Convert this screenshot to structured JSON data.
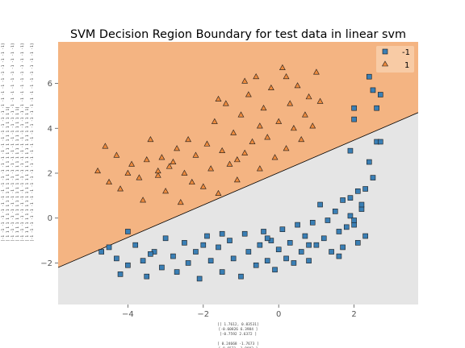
{
  "chart_data": {
    "type": "scatter",
    "title": "SVM Decision Region Boundary for test data in linear svm",
    "xlabel": "",
    "ylabel": "",
    "xlim": [
      -5.85,
      3.7
    ],
    "ylim": [
      -3.85,
      7.85
    ],
    "xticks": [
      -4,
      -2,
      0,
      2
    ],
    "yticks": [
      -2,
      0,
      2,
      4,
      6
    ],
    "grid": false,
    "legend_position": "top-right",
    "boundary": {
      "x": [
        -5.85,
        3.7
      ],
      "y": [
        -2.2,
        4.7
      ]
    },
    "region_colors": {
      "class_1": "#f4b482",
      "class_neg1": "#e5e5e5"
    },
    "series": [
      {
        "name": "-1",
        "marker": "square",
        "color": "#3a7fb5",
        "points": [
          [
            -4.0,
            -0.6
          ],
          [
            -4.7,
            -1.5
          ],
          [
            -4.5,
            -1.3
          ],
          [
            -4.3,
            -1.8
          ],
          [
            -4.2,
            -2.5
          ],
          [
            -4.0,
            -2.1
          ],
          [
            -3.8,
            -1.2
          ],
          [
            -3.6,
            -1.9
          ],
          [
            -3.5,
            -2.6
          ],
          [
            -3.3,
            -1.5
          ],
          [
            -3.1,
            -2.2
          ],
          [
            -3.0,
            -0.9
          ],
          [
            -2.8,
            -1.7
          ],
          [
            -2.7,
            -2.4
          ],
          [
            -2.5,
            -1.1
          ],
          [
            -2.4,
            -2.0
          ],
          [
            -2.2,
            -1.5
          ],
          [
            -2.1,
            -2.7
          ],
          [
            -1.9,
            -0.8
          ],
          [
            -1.8,
            -1.9
          ],
          [
            -1.6,
            -1.3
          ],
          [
            -1.5,
            -2.4
          ],
          [
            -1.3,
            -1.0
          ],
          [
            -1.2,
            -1.8
          ],
          [
            -1.0,
            -2.6
          ],
          [
            -0.9,
            -0.7
          ],
          [
            -0.8,
            -1.5
          ],
          [
            -0.6,
            -2.1
          ],
          [
            -0.5,
            -1.2
          ],
          [
            -0.4,
            -0.6
          ],
          [
            -0.3,
            -1.9
          ],
          [
            -0.2,
            -1.0
          ],
          [
            -0.1,
            -2.3
          ],
          [
            0.0,
            -1.4
          ],
          [
            0.1,
            -0.5
          ],
          [
            0.2,
            -1.8
          ],
          [
            0.3,
            -1.1
          ],
          [
            0.4,
            -2.0
          ],
          [
            0.5,
            -0.3
          ],
          [
            0.6,
            -1.5
          ],
          [
            0.7,
            -0.8
          ],
          [
            0.8,
            -1.9
          ],
          [
            0.9,
            -0.2
          ],
          [
            1.0,
            -1.2
          ],
          [
            1.1,
            0.6
          ],
          [
            1.2,
            -0.9
          ],
          [
            1.3,
            -0.1
          ],
          [
            1.4,
            -1.5
          ],
          [
            1.5,
            0.3
          ],
          [
            1.6,
            -0.6
          ],
          [
            1.7,
            0.8
          ],
          [
            1.8,
            -0.4
          ],
          [
            1.9,
            0.1
          ],
          [
            2.0,
            -0.3
          ],
          [
            2.1,
            1.2
          ],
          [
            2.2,
            0.4
          ],
          [
            2.3,
            -0.8
          ],
          [
            2.4,
            2.5
          ],
          [
            2.5,
            1.8
          ],
          [
            2.6,
            3.4
          ],
          [
            2.0,
            4.4
          ],
          [
            2.0,
            4.9
          ],
          [
            2.4,
            6.3
          ],
          [
            2.5,
            5.7
          ],
          [
            2.6,
            4.9
          ],
          [
            2.7,
            5.5
          ],
          [
            2.7,
            3.4
          ],
          [
            1.9,
            3.0
          ],
          [
            2.3,
            1.3
          ],
          [
            2.1,
            -1.1
          ],
          [
            1.6,
            -1.7
          ],
          [
            1.7,
            -1.3
          ],
          [
            1.9,
            0.9
          ],
          [
            2.2,
            0.6
          ],
          [
            2.0,
            -0.1
          ],
          [
            -1.5,
            -0.7
          ],
          [
            -0.3,
            -0.9
          ],
          [
            0.8,
            -1.2
          ],
          [
            -2.0,
            -1.2
          ],
          [
            -3.4,
            -1.6
          ]
        ]
      },
      {
        "name": "1",
        "marker": "triangle",
        "color": "#ee8a3c",
        "points": [
          [
            -4.8,
            2.1
          ],
          [
            -4.6,
            3.2
          ],
          [
            -4.5,
            1.6
          ],
          [
            -4.3,
            2.8
          ],
          [
            -4.2,
            1.3
          ],
          [
            -4.0,
            2.0
          ],
          [
            -3.9,
            2.4
          ],
          [
            -3.7,
            1.8
          ],
          [
            -3.6,
            0.8
          ],
          [
            -3.5,
            2.6
          ],
          [
            -3.4,
            3.5
          ],
          [
            -3.2,
            1.9
          ],
          [
            -3.1,
            2.7
          ],
          [
            -3.0,
            1.2
          ],
          [
            -2.9,
            2.3
          ],
          [
            -2.7,
            3.1
          ],
          [
            -2.6,
            0.7
          ],
          [
            -2.5,
            2.0
          ],
          [
            -2.4,
            3.5
          ],
          [
            -2.3,
            1.6
          ],
          [
            -2.2,
            2.8
          ],
          [
            -2.0,
            1.4
          ],
          [
            -1.9,
            3.3
          ],
          [
            -1.8,
            2.2
          ],
          [
            -1.7,
            4.3
          ],
          [
            -1.6,
            1.1
          ],
          [
            -1.5,
            3.0
          ],
          [
            -1.4,
            5.1
          ],
          [
            -1.3,
            2.4
          ],
          [
            -1.2,
            3.8
          ],
          [
            -1.1,
            1.7
          ],
          [
            -1.0,
            4.6
          ],
          [
            -0.9,
            2.9
          ],
          [
            -0.8,
            5.5
          ],
          [
            -0.7,
            3.4
          ],
          [
            -0.6,
            6.3
          ],
          [
            -0.5,
            2.2
          ],
          [
            -0.4,
            4.9
          ],
          [
            -0.3,
            3.6
          ],
          [
            -0.2,
            5.8
          ],
          [
            -0.1,
            2.7
          ],
          [
            0.0,
            4.3
          ],
          [
            0.1,
            6.7
          ],
          [
            0.2,
            3.1
          ],
          [
            0.3,
            5.1
          ],
          [
            0.4,
            4.0
          ],
          [
            0.5,
            5.9
          ],
          [
            0.6,
            3.5
          ],
          [
            0.7,
            4.6
          ],
          [
            0.8,
            5.4
          ],
          [
            0.9,
            4.1
          ],
          [
            1.0,
            6.5
          ],
          [
            1.1,
            5.2
          ],
          [
            -1.6,
            5.3
          ],
          [
            -0.9,
            6.1
          ],
          [
            -0.5,
            4.1
          ],
          [
            0.2,
            6.3
          ],
          [
            -3.2,
            2.1
          ],
          [
            -2.8,
            2.5
          ],
          [
            -1.1,
            2.6
          ]
        ]
      }
    ]
  }
}
